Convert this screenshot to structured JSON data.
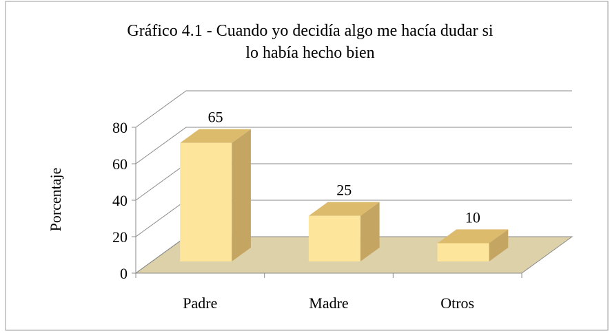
{
  "chart_data": {
    "type": "bar3d",
    "title": [
      "Gráfico 4.1 - Cuando yo decidía algo me hacía dudar si",
      "lo había hecho bien"
    ],
    "ylabel": "Porcentaje",
    "categories": [
      "Padre",
      "Madre",
      "Otros"
    ],
    "values": [
      65,
      25,
      10
    ],
    "color": "#fde59c",
    "ylim": [
      0,
      80
    ],
    "yticks": [
      0,
      20,
      40,
      60,
      80
    ],
    "grid": true
  }
}
